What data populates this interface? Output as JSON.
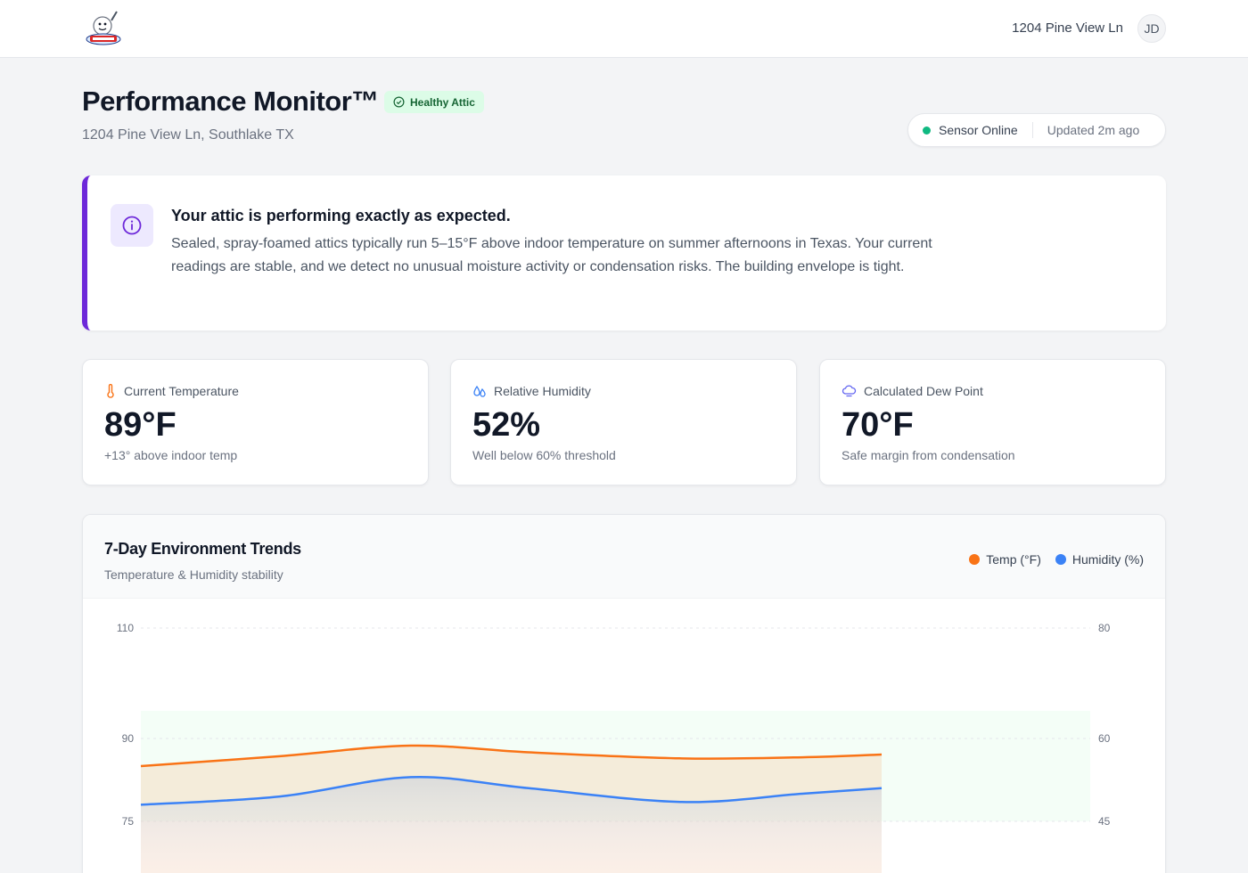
{
  "header": {
    "address": "1204 Pine View Ln",
    "avatar_initials": "JD",
    "logo_name": "logo"
  },
  "page": {
    "title": "Performance Monitor™",
    "badge": "Healthy Attic",
    "address": "1204 Pine View Ln, Southlake TX"
  },
  "status": {
    "online": "Sensor Online",
    "updated": "Updated 2m ago",
    "online_color": "#10b981"
  },
  "alert": {
    "title": "Your attic is performing exactly as expected.",
    "body": "Sealed, spray-foamed attics typically run 5–15°F above indoor temperature on summer afternoons in Texas. Your current readings are stable, and we detect no unusual moisture activity or condensation risks. The building envelope is tight.",
    "accent": "#6d28d9",
    "icon": "info-icon"
  },
  "metrics": [
    {
      "label": "Current Temperature",
      "value": "89°F",
      "note": "+13° above indoor temp",
      "icon": "thermometer-icon",
      "color": "#f97316"
    },
    {
      "label": "Relative Humidity",
      "value": "52%",
      "note": "Well below 60% threshold",
      "icon": "droplets-icon",
      "color": "#3b82f6"
    },
    {
      "label": "Calculated Dew Point",
      "value": "70°F",
      "note": "Safe margin from condensation",
      "icon": "cloud-icon",
      "color": "#6366f1"
    }
  ],
  "chart": {
    "title": "7-Day Environment Trends",
    "subtitle": "Temperature & Humidity stability",
    "legend": [
      {
        "name": "Temp (°F)",
        "color": "#f97316"
      },
      {
        "name": "Humidity (%)",
        "color": "#3b82f6"
      }
    ]
  },
  "chart_data": {
    "type": "area",
    "left_axis": {
      "ticks": [
        "110",
        "90",
        "75"
      ],
      "ylim": [
        75,
        110
      ]
    },
    "right_axis": {
      "ticks": [
        "80",
        "60",
        "45"
      ],
      "ylim": [
        45,
        80
      ]
    },
    "band": {
      "temp_range": [
        75,
        95
      ]
    },
    "x": [
      0,
      1,
      2,
      3,
      4,
      5,
      6
    ],
    "series": [
      {
        "name": "Temp (°F)",
        "axis": "left",
        "values": [
          85,
          86.8,
          88.7,
          87.5,
          86.4,
          86.6,
          87.1
        ]
      },
      {
        "name": "Humidity (%)",
        "axis": "right",
        "values": [
          48,
          49.5,
          53,
          51,
          48.5,
          50,
          51
        ]
      }
    ]
  }
}
